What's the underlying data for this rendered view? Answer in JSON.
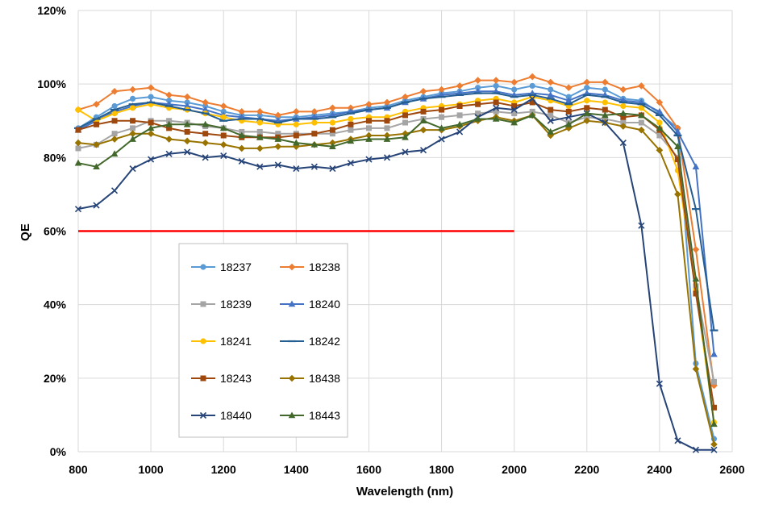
{
  "chart_data": {
    "type": "line",
    "title": "",
    "xlabel": "Wavelength (nm)",
    "ylabel": "QE",
    "xlim": [
      800,
      2600
    ],
    "ylim": [
      0,
      120
    ],
    "x_ticks": [
      800,
      1000,
      1200,
      1400,
      1600,
      1800,
      2000,
      2200,
      2400,
      2600
    ],
    "y_ticks": [
      0,
      20,
      40,
      60,
      80,
      100,
      120
    ],
    "y_tick_suffix": "%",
    "grid": true,
    "legend_position": "center-left",
    "reference_line": {
      "y": 60,
      "x_start": 800,
      "x_end": 2000,
      "color": "#ff0000"
    },
    "x": [
      800,
      850,
      900,
      950,
      1000,
      1050,
      1100,
      1150,
      1200,
      1250,
      1300,
      1350,
      1400,
      1450,
      1500,
      1550,
      1600,
      1650,
      1700,
      1750,
      1800,
      1850,
      1900,
      1950,
      2000,
      2050,
      2100,
      2150,
      2200,
      2250,
      2300,
      2350,
      2400,
      2450,
      2500,
      2550
    ],
    "series": [
      {
        "name": "18237",
        "color": "#5b9bd5",
        "marker": "circle",
        "values": [
          88,
          91,
          94,
          96,
          96.5,
          95.5,
          95,
          94,
          92.5,
          91.5,
          91.5,
          91,
          91,
          91.5,
          92,
          92.5,
          93.5,
          94,
          95.5,
          96.5,
          97.5,
          98,
          99,
          99.5,
          98.5,
          99.5,
          98.5,
          96.5,
          99,
          98.5,
          96,
          95.5,
          92,
          88,
          24,
          3.5
        ]
      },
      {
        "name": "18238",
        "color": "#ed7d31",
        "marker": "diamond",
        "values": [
          93,
          94.5,
          98,
          98.5,
          99,
          97,
          96.5,
          95,
          94,
          92.5,
          92.5,
          91.5,
          92.5,
          92.5,
          93.5,
          93.5,
          94.5,
          95,
          96.5,
          98,
          98.5,
          99.5,
          101,
          101,
          100.5,
          102,
          100.5,
          99,
          100.5,
          100.5,
          98.5,
          99.5,
          95,
          88,
          55,
          18
        ]
      },
      {
        "name": "18239",
        "color": "#a5a5a5",
        "marker": "square",
        "values": [
          82.5,
          83.5,
          86.5,
          88,
          90,
          90,
          89.5,
          88.5,
          88,
          87,
          87,
          86.5,
          86.5,
          86.5,
          86.5,
          87.5,
          88,
          88,
          89.5,
          90.5,
          91,
          91.5,
          92,
          92.5,
          92,
          92.5,
          91.5,
          89.5,
          91,
          90.5,
          89.5,
          89.5,
          86,
          80,
          45,
          19
        ]
      },
      {
        "name": "18240",
        "color": "#4472c4",
        "marker": "triangle",
        "values": [
          87.5,
          90,
          92.5,
          94,
          95,
          94.5,
          94,
          93,
          91.5,
          91,
          90.5,
          90,
          90.5,
          91,
          91.5,
          92.5,
          93,
          93.5,
          95,
          96,
          97,
          97.5,
          98,
          98,
          97,
          97.5,
          97,
          95.5,
          97.5,
          97,
          95.5,
          95,
          92.5,
          87,
          77.5,
          26.5
        ]
      },
      {
        "name": "18241",
        "color": "#ffc000",
        "marker": "circle",
        "values": [
          93,
          90,
          92,
          93.5,
          94.5,
          93.5,
          93,
          92,
          91,
          90,
          89.5,
          89,
          89,
          89.5,
          89.5,
          90.5,
          91,
          91,
          92.5,
          93.5,
          94,
          94.5,
          95.5,
          96,
          95,
          96.5,
          95.5,
          94,
          95.5,
          95,
          94,
          93.5,
          89.5,
          76.5,
          44,
          8
        ]
      },
      {
        "name": "18242",
        "color": "#255e91",
        "marker": "dash",
        "values": [
          88,
          90.5,
          93,
          94.5,
          95,
          94,
          93,
          92,
          90,
          90.5,
          90.5,
          89.5,
          90.5,
          90.5,
          91,
          92,
          93,
          93.5,
          95,
          96,
          96.5,
          97,
          97.5,
          97.5,
          96.5,
          97,
          96,
          94.5,
          97,
          96.5,
          95,
          94.5,
          91.5,
          86,
          66,
          33
        ]
      },
      {
        "name": "18243",
        "color": "#9e480e",
        "marker": "square",
        "values": [
          87.5,
          89,
          90,
          90,
          89.5,
          88,
          87,
          86.5,
          86,
          85.5,
          85.5,
          85.5,
          86,
          86.5,
          87.5,
          89,
          90,
          90,
          91.5,
          92.5,
          93,
          94,
          94.5,
          95,
          94,
          95,
          93,
          92.5,
          93.5,
          93,
          91,
          91.5,
          87.5,
          79.5,
          43,
          12
        ]
      },
      {
        "name": "18438",
        "color": "#997300",
        "marker": "diamond",
        "values": [
          84,
          83.5,
          85,
          86.5,
          86.5,
          85,
          84.5,
          84,
          83.5,
          82.5,
          82.5,
          83,
          83,
          83.5,
          84,
          85,
          86,
          86,
          86.5,
          87.5,
          87.5,
          88.5,
          90,
          91,
          90,
          91.5,
          86,
          88,
          90,
          89.5,
          88.5,
          87.5,
          82,
          70,
          22.5,
          2
        ]
      },
      {
        "name": "18440",
        "color": "#264478",
        "marker": "x",
        "values": [
          66,
          67,
          71,
          77,
          79.5,
          81,
          81.5,
          80,
          80.5,
          79,
          77.5,
          78,
          77,
          77.5,
          77,
          78.5,
          79.5,
          80,
          81.5,
          82,
          85,
          87,
          91,
          93.5,
          93,
          96,
          90,
          91,
          92,
          89.5,
          84,
          61.5,
          18.5,
          3,
          0.5,
          0.5
        ]
      },
      {
        "name": "18443",
        "color": "#43682b",
        "marker": "triangle",
        "values": [
          78.5,
          77.5,
          81,
          85,
          88,
          89,
          89,
          89,
          88,
          86,
          85.5,
          85,
          84,
          83.5,
          83,
          84.5,
          85,
          85,
          85.5,
          90,
          88,
          89,
          90.5,
          90.5,
          89.5,
          91.5,
          87,
          89,
          92,
          91.5,
          92,
          91.5,
          88,
          83,
          47,
          7.5
        ]
      }
    ]
  }
}
